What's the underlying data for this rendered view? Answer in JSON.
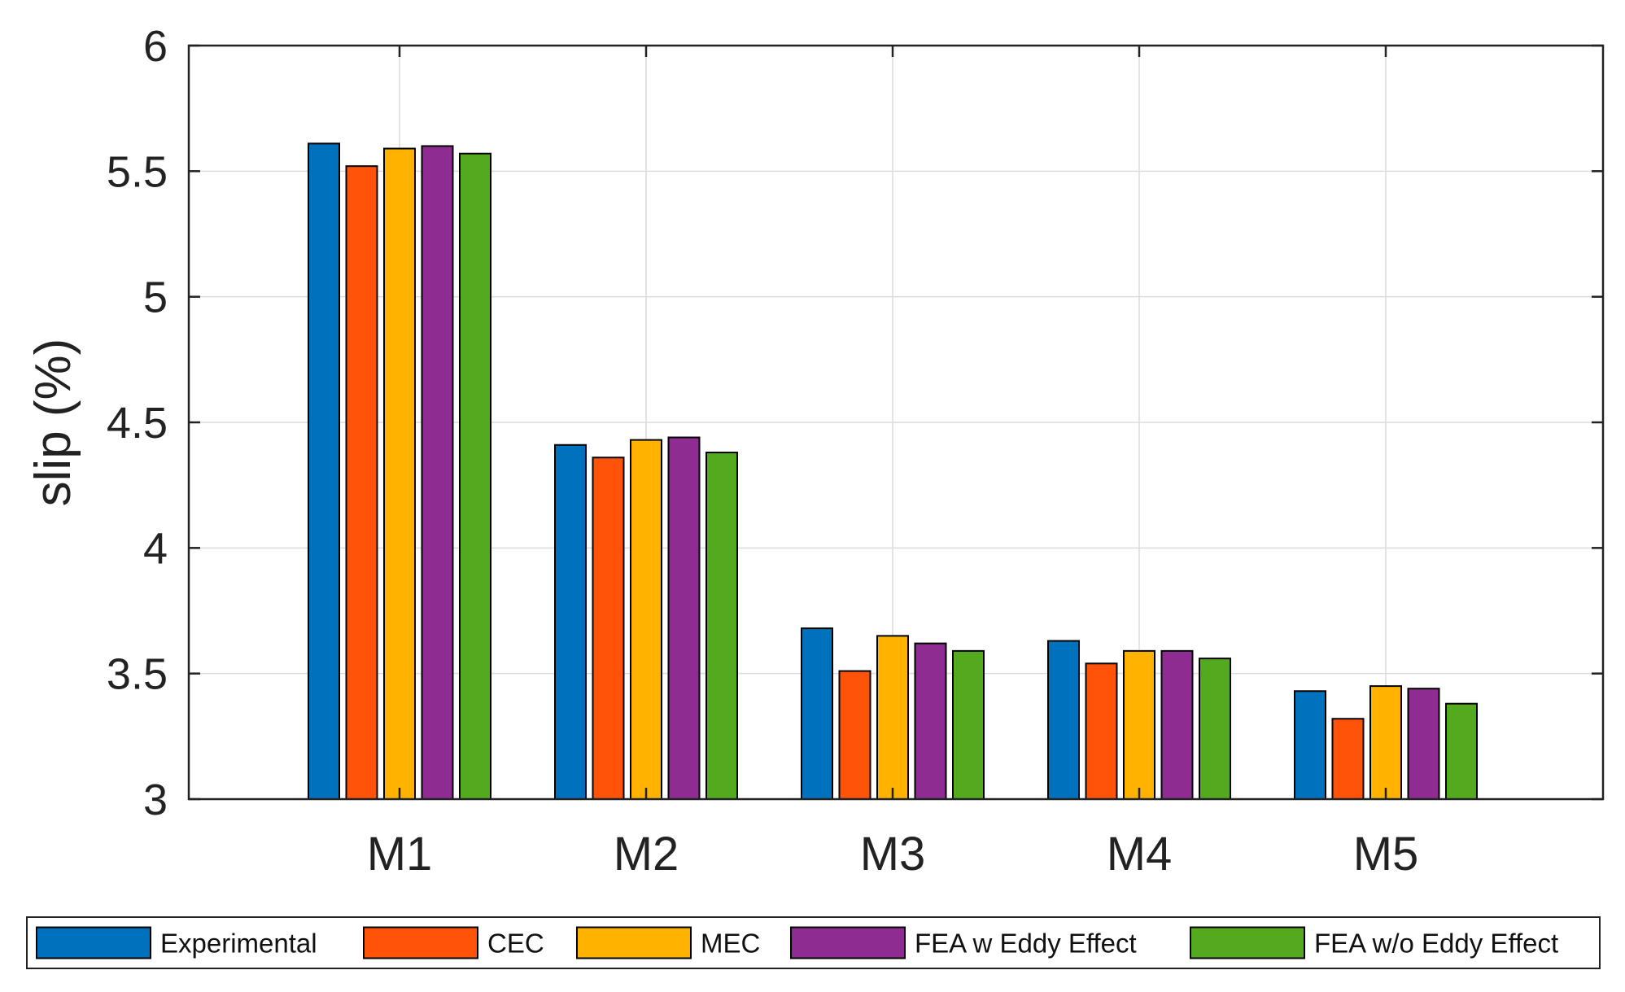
{
  "chart_data": {
    "type": "bar",
    "title": "",
    "xlabel": "",
    "ylabel": "slip (%)",
    "ylim": [
      3,
      6
    ],
    "yticks": [
      3,
      3.5,
      4,
      4.5,
      5,
      5.5,
      6
    ],
    "ytick_labels": [
      "3",
      "3.5",
      "4",
      "4.5",
      "5",
      "5.5",
      "6"
    ],
    "grid": true,
    "legend_position": "bottom",
    "categories": [
      "M1",
      "M2",
      "M3",
      "M4",
      "M5"
    ],
    "series": [
      {
        "name": "Experimental",
        "color": "#0072BD",
        "values": [
          5.61,
          4.41,
          3.68,
          3.63,
          3.43
        ]
      },
      {
        "name": "CEC",
        "color": "#FF5309",
        "values": [
          5.52,
          4.36,
          3.51,
          3.54,
          3.32
        ]
      },
      {
        "name": "MEC",
        "color": "#FFB300",
        "values": [
          5.59,
          4.43,
          3.65,
          3.59,
          3.45
        ]
      },
      {
        "name": "FEA w Eddy Effect",
        "color": "#8E2C91",
        "values": [
          5.6,
          4.44,
          3.62,
          3.59,
          3.44
        ]
      },
      {
        "name": "FEA w/o Eddy Effect",
        "color": "#54AA1F",
        "values": [
          5.57,
          4.38,
          3.59,
          3.56,
          3.38
        ]
      }
    ]
  }
}
